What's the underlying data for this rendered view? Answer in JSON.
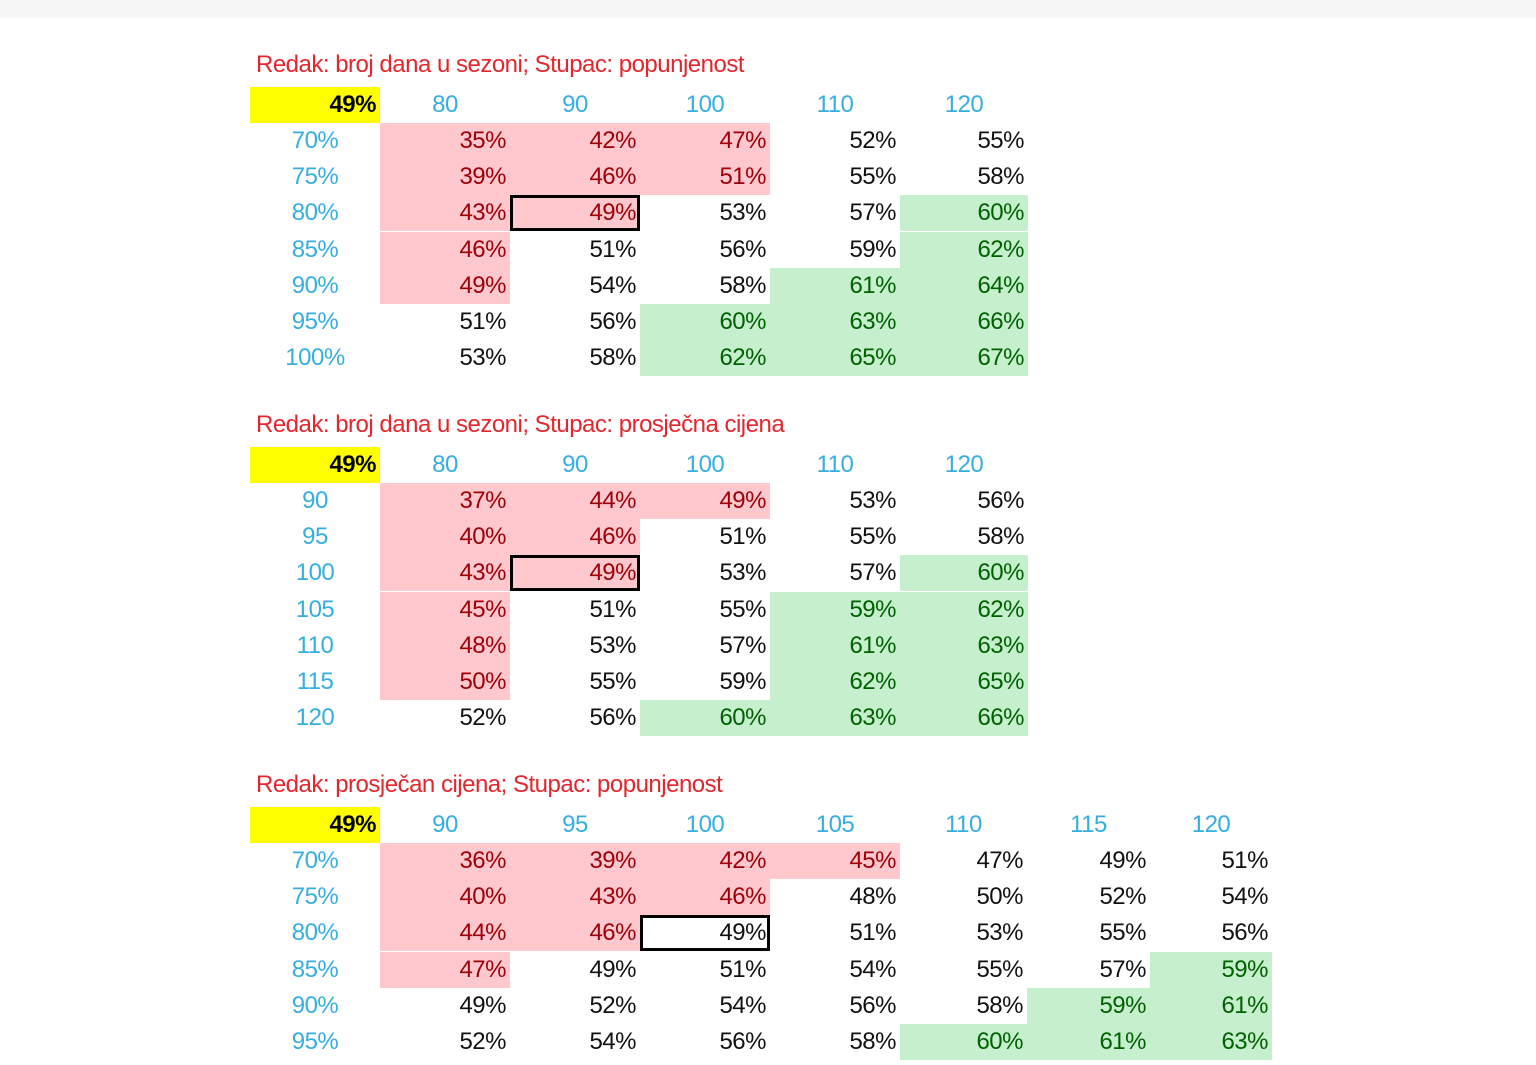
{
  "tables": [
    {
      "title": "Redak: broj dana u sezoni; Stupac: popunjenost",
      "corner": "49%",
      "columns": [
        "80",
        "90",
        "100",
        "110",
        "120"
      ],
      "rows": [
        {
          "label": "70%",
          "values": [
            "35%",
            "42%",
            "47%",
            "52%",
            "55%"
          ],
          "styles": [
            "r",
            "r",
            "r",
            "",
            ""
          ]
        },
        {
          "label": "75%",
          "values": [
            "39%",
            "46%",
            "51%",
            "55%",
            "58%"
          ],
          "styles": [
            "r",
            "r",
            "r",
            "",
            ""
          ]
        },
        {
          "label": "80%",
          "values": [
            "43%",
            "49%",
            "53%",
            "57%",
            "60%"
          ],
          "styles": [
            "r",
            "r",
            "",
            "",
            "g"
          ]
        },
        {
          "label": "85%",
          "values": [
            "46%",
            "51%",
            "56%",
            "59%",
            "62%"
          ],
          "styles": [
            "r",
            "",
            "",
            "",
            "g"
          ]
        },
        {
          "label": "90%",
          "values": [
            "49%",
            "54%",
            "58%",
            "61%",
            "64%"
          ],
          "styles": [
            "r",
            "",
            "",
            "g",
            "g"
          ]
        },
        {
          "label": "95%",
          "values": [
            "51%",
            "56%",
            "60%",
            "63%",
            "66%"
          ],
          "styles": [
            "",
            "",
            "g",
            "g",
            "g"
          ]
        },
        {
          "label": "100%",
          "values": [
            "53%",
            "58%",
            "62%",
            "65%",
            "67%"
          ],
          "styles": [
            "",
            "",
            "g",
            "g",
            "g"
          ]
        }
      ],
      "selected_cell": {
        "row": "80%",
        "column": "90"
      }
    },
    {
      "title": "Redak: broj dana u sezoni; Stupac: prosječna cijena",
      "corner": "49%",
      "columns": [
        "80",
        "90",
        "100",
        "110",
        "120"
      ],
      "rows": [
        {
          "label": "90",
          "values": [
            "37%",
            "44%",
            "49%",
            "53%",
            "56%"
          ],
          "styles": [
            "r",
            "r",
            "r",
            "",
            ""
          ]
        },
        {
          "label": "95",
          "values": [
            "40%",
            "46%",
            "51%",
            "55%",
            "58%"
          ],
          "styles": [
            "r",
            "r",
            "",
            "",
            ""
          ]
        },
        {
          "label": "100",
          "values": [
            "43%",
            "49%",
            "53%",
            "57%",
            "60%"
          ],
          "styles": [
            "r",
            "r",
            "",
            "",
            "g"
          ]
        },
        {
          "label": "105",
          "values": [
            "45%",
            "51%",
            "55%",
            "59%",
            "62%"
          ],
          "styles": [
            "r",
            "",
            "",
            "g",
            "g"
          ]
        },
        {
          "label": "110",
          "values": [
            "48%",
            "53%",
            "57%",
            "61%",
            "63%"
          ],
          "styles": [
            "r",
            "",
            "",
            "g",
            "g"
          ]
        },
        {
          "label": "115",
          "values": [
            "50%",
            "55%",
            "59%",
            "62%",
            "65%"
          ],
          "styles": [
            "r",
            "",
            "",
            "g",
            "g"
          ]
        },
        {
          "label": "120",
          "values": [
            "52%",
            "56%",
            "60%",
            "63%",
            "66%"
          ],
          "styles": [
            "",
            "",
            "g",
            "g",
            "g"
          ]
        }
      ],
      "selected_cell": {
        "row": "100",
        "column": "90"
      }
    },
    {
      "title": "Redak: prosječan cijena; Stupac: popunjenost",
      "corner": "49%",
      "columns": [
        "90",
        "95",
        "100",
        "105",
        "110",
        "115",
        "120"
      ],
      "rows": [
        {
          "label": "70%",
          "values": [
            "36%",
            "39%",
            "42%",
            "45%",
            "47%",
            "49%",
            "51%"
          ],
          "styles": [
            "r",
            "r",
            "r",
            "r",
            "",
            "",
            ""
          ]
        },
        {
          "label": "75%",
          "values": [
            "40%",
            "43%",
            "46%",
            "48%",
            "50%",
            "52%",
            "54%"
          ],
          "styles": [
            "r",
            "r",
            "r",
            "",
            "",
            "",
            ""
          ]
        },
        {
          "label": "80%",
          "values": [
            "44%",
            "46%",
            "49%",
            "51%",
            "53%",
            "55%",
            "56%"
          ],
          "styles": [
            "r",
            "r",
            "",
            "",
            "",
            "",
            ""
          ]
        },
        {
          "label": "85%",
          "values": [
            "47%",
            "49%",
            "51%",
            "54%",
            "55%",
            "57%",
            "59%"
          ],
          "styles": [
            "r",
            "",
            "",
            "",
            "",
            "",
            "g"
          ]
        },
        {
          "label": "90%",
          "values": [
            "49%",
            "52%",
            "54%",
            "56%",
            "58%",
            "59%",
            "61%"
          ],
          "styles": [
            "",
            "",
            "",
            "",
            "",
            "g",
            "g"
          ]
        },
        {
          "label": "95%",
          "values": [
            "52%",
            "54%",
            "56%",
            "58%",
            "60%",
            "61%",
            "63%"
          ],
          "styles": [
            "",
            "",
            "",
            "",
            "g",
            "g",
            "g"
          ]
        }
      ],
      "selected_cell": {
        "row": "80%",
        "column": "100"
      }
    }
  ],
  "colors": {
    "negative_fill": "#ffc7ce",
    "negative_text": "#9c0006",
    "positive_fill": "#c6efce",
    "positive_text": "#006100",
    "corner_fill": "#ffff00",
    "title": "#e3262d",
    "axis_label": "#35aee0"
  }
}
